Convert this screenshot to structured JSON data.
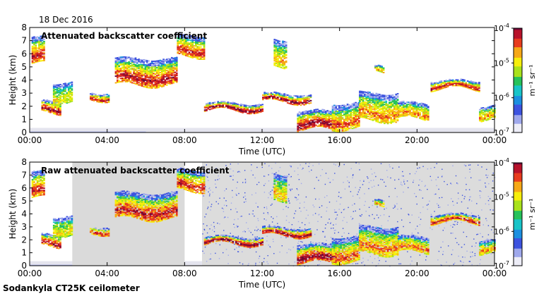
{
  "figure": {
    "date": "18 Dec 2016",
    "footer": "Sodankyla CT25K ceilometer",
    "colormap": [
      "#ededf7",
      "#9fa8ec",
      "#3d53df",
      "#1c8fe0",
      "#18c4c8",
      "#26c25a",
      "#a9e21c",
      "#f6ee0c",
      "#f6a817",
      "#e83c1e",
      "#b8122a",
      "#6e0837"
    ]
  },
  "chart_data": [
    {
      "type": "heatmap",
      "title": "Attenuated backscatter coefficient",
      "xlabel": "Time (UTC)",
      "ylabel": "Height (km)",
      "xlim": [
        0,
        24
      ],
      "ylim": [
        0,
        8
      ],
      "xticks": [
        "00:00",
        "04:00",
        "08:00",
        "12:00",
        "16:00",
        "20:00",
        "00:00"
      ],
      "yticks": [
        "0",
        "1",
        "2",
        "3",
        "4",
        "5",
        "6",
        "7",
        "8"
      ],
      "colorbar": {
        "label": "m⁻¹ sr⁻¹",
        "scale": "log",
        "range": [
          1e-07,
          0.0001
        ],
        "ticks": [
          {
            "base": "10",
            "exp": "-4"
          },
          {
            "base": "10",
            "exp": "-5"
          },
          {
            "base": "10",
            "exp": "-6"
          },
          {
            "base": "10",
            "exp": "-7"
          }
        ]
      },
      "background": "none",
      "layers": [
        {
          "start": 0.1,
          "end": 0.7,
          "base": 5.2,
          "top": 7.2,
          "peak": 2.6
        },
        {
          "start": 0.6,
          "end": 1.6,
          "base": 1.5,
          "top": 2.4,
          "peak": 2.8
        },
        {
          "start": 1.2,
          "end": 2.2,
          "base": 2.3,
          "top": 3.8,
          "peak": 1.3
        },
        {
          "start": 3.1,
          "end": 4.1,
          "base": 2.5,
          "top": 3.0,
          "peak": 2.6
        },
        {
          "start": 4.4,
          "end": 7.6,
          "base": 3.6,
          "top": 5.6,
          "peak": 2.6
        },
        {
          "start": 7.6,
          "end": 9.0,
          "base": 5.8,
          "top": 7.4,
          "peak": 2.5
        },
        {
          "start": 9.0,
          "end": 12.0,
          "base": 1.65,
          "top": 2.2,
          "peak": 3.2
        },
        {
          "start": 12.0,
          "end": 14.5,
          "base": 2.3,
          "top": 2.9,
          "peak": 3.0
        },
        {
          "start": 13.8,
          "end": 15.8,
          "base": 0.2,
          "top": 1.6,
          "peak": 3.0
        },
        {
          "start": 15.6,
          "end": 17.0,
          "base": 0.3,
          "top": 2.2,
          "peak": 2.2
        },
        {
          "start": 17.0,
          "end": 19.0,
          "base": 0.9,
          "top": 3.0,
          "peak": 2.0
        },
        {
          "start": 19.0,
          "end": 20.6,
          "base": 1.0,
          "top": 2.2,
          "peak": 2.0
        },
        {
          "start": 20.7,
          "end": 23.2,
          "base": 3.3,
          "top": 3.9,
          "peak": 2.6
        },
        {
          "start": 23.2,
          "end": 24.0,
          "base": 1.0,
          "top": 2.0,
          "peak": 1.8
        },
        {
          "start": 12.6,
          "end": 13.2,
          "base": 5.0,
          "top": 7.0,
          "peak": 1.6
        },
        {
          "start": 17.8,
          "end": 18.3,
          "base": 4.5,
          "top": 5.0,
          "peak": 1.8
        }
      ]
    },
    {
      "type": "heatmap",
      "title": "Raw attenuated backscatter coefficient",
      "xlabel": "Time (UTC)",
      "ylabel": "Height (km)",
      "xlim": [
        0,
        24
      ],
      "ylim": [
        0,
        8
      ],
      "xticks": [
        "00:00",
        "04:00",
        "08:00",
        "12:00",
        "16:00",
        "20:00",
        "00:00"
      ],
      "yticks": [
        "0",
        "1",
        "2",
        "3",
        "4",
        "5",
        "6",
        "7",
        "8"
      ],
      "colorbar": {
        "label": "m⁻¹ sr⁻¹",
        "scale": "log",
        "range": [
          1e-07,
          0.0001
        ],
        "ticks": [
          {
            "base": "10",
            "exp": "-4"
          },
          {
            "base": "10",
            "exp": "-5"
          },
          {
            "base": "10",
            "exp": "-6"
          },
          {
            "base": "10",
            "exp": "-7"
          }
        ]
      },
      "background": "noise",
      "layers": [
        {
          "start": 0.1,
          "end": 0.7,
          "base": 5.2,
          "top": 7.2,
          "peak": 2.6
        },
        {
          "start": 0.6,
          "end": 1.6,
          "base": 1.5,
          "top": 2.4,
          "peak": 2.8
        },
        {
          "start": 1.2,
          "end": 2.2,
          "base": 2.3,
          "top": 3.8,
          "peak": 1.3
        },
        {
          "start": 3.1,
          "end": 4.1,
          "base": 2.5,
          "top": 3.0,
          "peak": 2.6
        },
        {
          "start": 4.4,
          "end": 7.6,
          "base": 3.6,
          "top": 5.6,
          "peak": 2.6
        },
        {
          "start": 7.6,
          "end": 9.0,
          "base": 5.8,
          "top": 7.4,
          "peak": 2.5
        },
        {
          "start": 9.0,
          "end": 12.0,
          "base": 1.65,
          "top": 2.2,
          "peak": 3.2
        },
        {
          "start": 12.0,
          "end": 14.5,
          "base": 2.3,
          "top": 2.9,
          "peak": 3.0
        },
        {
          "start": 13.8,
          "end": 15.8,
          "base": 0.2,
          "top": 1.6,
          "peak": 3.0
        },
        {
          "start": 15.6,
          "end": 17.0,
          "base": 0.3,
          "top": 2.2,
          "peak": 2.2
        },
        {
          "start": 17.0,
          "end": 19.0,
          "base": 0.9,
          "top": 3.0,
          "peak": 2.0
        },
        {
          "start": 19.0,
          "end": 20.6,
          "base": 1.0,
          "top": 2.2,
          "peak": 2.0
        },
        {
          "start": 20.7,
          "end": 23.2,
          "base": 3.3,
          "top": 3.9,
          "peak": 2.6
        },
        {
          "start": 23.2,
          "end": 24.0,
          "base": 1.0,
          "top": 2.0,
          "peak": 1.8
        },
        {
          "start": 12.6,
          "end": 13.2,
          "base": 5.0,
          "top": 7.0,
          "peak": 1.6
        },
        {
          "start": 17.8,
          "end": 18.3,
          "base": 4.5,
          "top": 5.0,
          "peak": 1.8
        }
      ]
    }
  ]
}
